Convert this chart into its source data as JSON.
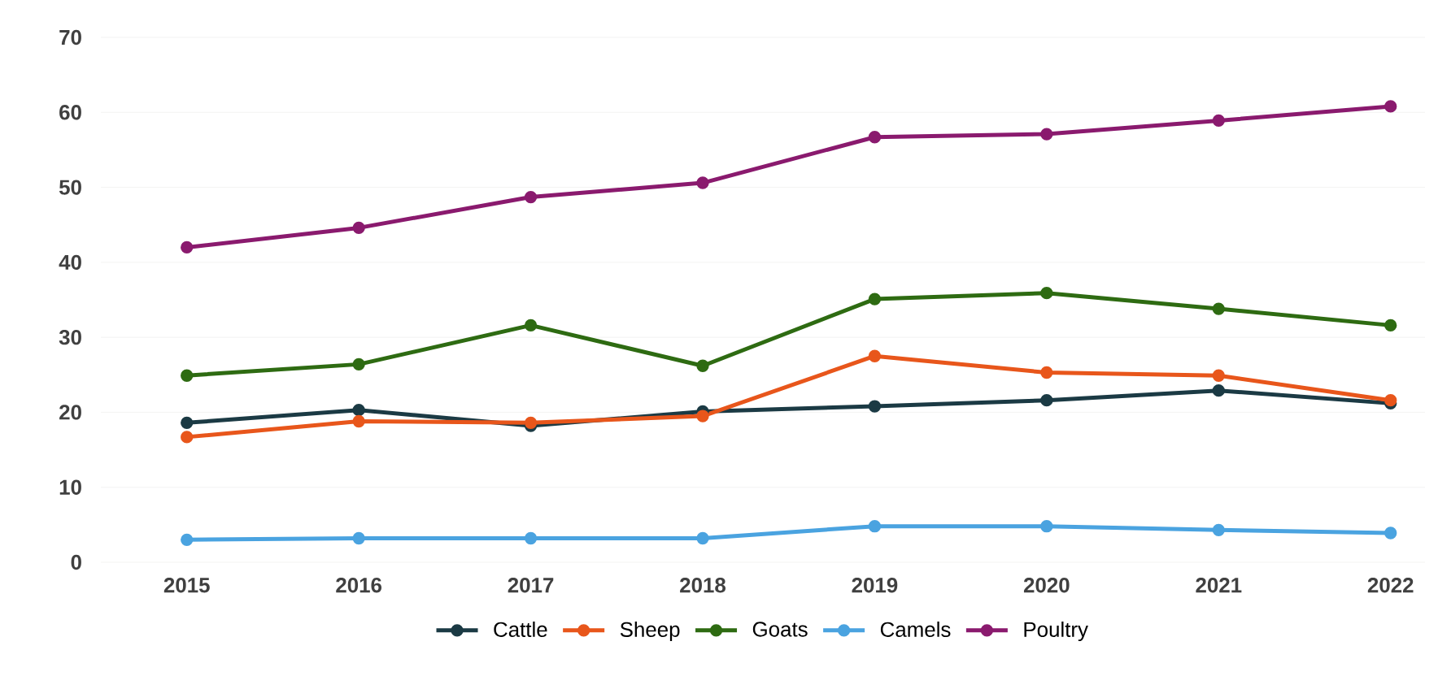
{
  "chart_data": {
    "type": "line",
    "categories": [
      "2015",
      "2016",
      "2017",
      "2018",
      "2019",
      "2020",
      "2021",
      "2022"
    ],
    "series": [
      {
        "name": "Cattle",
        "color": "#1b3a44",
        "values": [
          18.6,
          20.3,
          18.2,
          20.1,
          20.8,
          21.6,
          22.9,
          21.2
        ]
      },
      {
        "name": "Sheep",
        "color": "#e8561b",
        "values": [
          16.7,
          18.8,
          18.6,
          19.5,
          27.5,
          25.3,
          24.9,
          21.6
        ]
      },
      {
        "name": "Goats",
        "color": "#2e6b12",
        "values": [
          24.9,
          26.4,
          31.6,
          26.2,
          35.1,
          35.9,
          33.8,
          31.6
        ]
      },
      {
        "name": "Camels",
        "color": "#4aa3e0",
        "values": [
          3.0,
          3.2,
          3.2,
          3.2,
          4.8,
          4.8,
          4.3,
          3.9
        ]
      },
      {
        "name": "Poultry",
        "color": "#8a1a6e",
        "values": [
          42.0,
          44.6,
          48.7,
          50.6,
          56.7,
          57.1,
          58.9,
          60.8
        ]
      }
    ],
    "ylim": [
      0,
      70
    ],
    "yticks": [
      0,
      10,
      20,
      30,
      40,
      50,
      60,
      70
    ],
    "grid": "y",
    "legend": "bottom",
    "marker": "circle",
    "line_style": "solid"
  }
}
